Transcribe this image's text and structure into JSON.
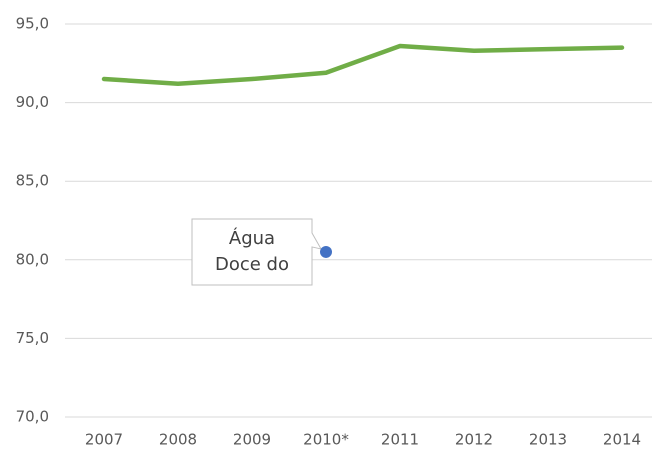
{
  "chart_data": {
    "type": "line",
    "categories": [
      "2007",
      "2008",
      "2009",
      "2010*",
      "2011",
      "2012",
      "2013",
      "2014"
    ],
    "series": [
      {
        "color": "#70ad47",
        "values": [
          91.5,
          91.2,
          91.5,
          91.9,
          93.6,
          93.3,
          93.4,
          93.5
        ]
      },
      {
        "name": "Água Doce do Norte",
        "color": "#4472c4",
        "values": [
          null,
          null,
          null,
          80.5,
          null,
          null,
          null,
          null
        ]
      }
    ],
    "ylim": [
      70,
      95
    ],
    "yticks": [
      {
        "value": 70,
        "label": "70,0"
      },
      {
        "value": 75,
        "label": "75,0"
      },
      {
        "value": 80,
        "label": "80,0"
      },
      {
        "value": 85,
        "label": "85,0"
      },
      {
        "value": 90,
        "label": "90,0"
      },
      {
        "value": 95,
        "label": "95,0"
      }
    ],
    "grid": true
  }
}
